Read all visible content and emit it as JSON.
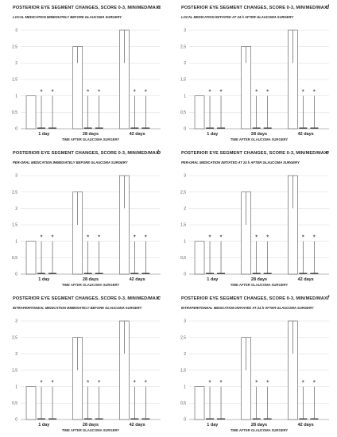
{
  "chart_data": [
    {
      "type": "bar",
      "panel": "a",
      "title": "POSTERIOR EYE SEGMENT CHANGES, SCORE 0-3, MIN/MED/MAX",
      "subtitle": "LOCAL MEDICATION IMMEDIATELY BEFORE GLAUCOMA SURGERY",
      "xlabel": "TIME AFTER GLAUCOMA SURGERY",
      "categories": [
        "1 day",
        "28 days",
        "42 days"
      ],
      "yticks": [
        "0",
        "0,5",
        "1",
        "1,5",
        "2",
        "2,5",
        "3"
      ],
      "ylim": [
        0,
        3
      ],
      "groups": [
        {
          "bars": [
            {
              "value": 1,
              "err_min": 1,
              "err_max": 1,
              "star": false
            },
            {
              "value": 0,
              "err_min": 0,
              "err_max": 1,
              "star": true
            },
            {
              "value": 0,
              "err_min": 0,
              "err_max": 1,
              "star": true
            }
          ]
        },
        {
          "bars": [
            {
              "value": 2.5,
              "err_min": 2,
              "err_max": 2.5,
              "star": false
            },
            {
              "value": 0,
              "err_min": 0,
              "err_max": 1,
              "star": true
            },
            {
              "value": 0,
              "err_min": 0,
              "err_max": 1,
              "star": true
            }
          ]
        },
        {
          "bars": [
            {
              "value": 3,
              "err_min": 2,
              "err_max": 3,
              "star": false
            },
            {
              "value": 0,
              "err_min": 0,
              "err_max": 1,
              "star": true
            },
            {
              "value": 0,
              "err_min": 0,
              "err_max": 1,
              "star": true
            }
          ]
        }
      ],
      "star_label": "*"
    },
    {
      "type": "bar",
      "panel": "d",
      "title": "POSTERIOR EYE SEGMENT CHANGES, SCORE 0-3, MIN/MED/MAX",
      "subtitle": "LOCAL MEDICATION INITIATED AT 24 h AFTER GLAUCOMA SURGERY",
      "xlabel": "TIME AFTER GLAUCOMA SURGERY",
      "categories": [
        "1 day",
        "28 days",
        "42 days"
      ],
      "yticks": [
        "0",
        "0,5",
        "1",
        "1,5",
        "2",
        "2,5",
        "3"
      ],
      "ylim": [
        0,
        3
      ],
      "groups": [
        {
          "bars": [
            {
              "value": 1,
              "err_min": 1,
              "err_max": 1,
              "star": false
            },
            {
              "value": 0,
              "err_min": 0,
              "err_max": 1,
              "star": true
            },
            {
              "value": 0,
              "err_min": 0,
              "err_max": 1,
              "star": true
            }
          ]
        },
        {
          "bars": [
            {
              "value": 2.5,
              "err_min": 2,
              "err_max": 2.5,
              "star": false
            },
            {
              "value": 0,
              "err_min": 0,
              "err_max": 1,
              "star": true
            },
            {
              "value": 0,
              "err_min": 0,
              "err_max": 1,
              "star": true
            }
          ]
        },
        {
          "bars": [
            {
              "value": 3,
              "err_min": 2,
              "err_max": 3,
              "star": false
            },
            {
              "value": 0,
              "err_min": 0,
              "err_max": 1,
              "star": true
            },
            {
              "value": 0,
              "err_min": 0,
              "err_max": 1,
              "star": true
            }
          ]
        }
      ],
      "star_label": "*"
    },
    {
      "type": "bar",
      "panel": "b",
      "title": "POSTERIOR EYE SEGMENT CHANGES, SCORE 0-3, MIN/MED/MAX",
      "subtitle": "PER-ORAL MEDICATION IMMEDIATELY BEFORE GLAUCOMA SURGERY",
      "xlabel": "TIME AFTER GLAUCOMA SURGERY",
      "categories": [
        "1 day",
        "28 days",
        "42 days"
      ],
      "yticks": [
        "0",
        "0,5",
        "1",
        "1,5",
        "2",
        "2,5",
        "3"
      ],
      "ylim": [
        0,
        3
      ],
      "groups": [
        {
          "bars": [
            {
              "value": 1,
              "err_min": 1,
              "err_max": 1,
              "star": false
            },
            {
              "value": 0,
              "err_min": 0,
              "err_max": 1,
              "star": true
            },
            {
              "value": 0,
              "err_min": 0,
              "err_max": 1,
              "star": true
            }
          ]
        },
        {
          "bars": [
            {
              "value": 2.5,
              "err_min": 1.5,
              "err_max": 2.5,
              "star": false
            },
            {
              "value": 0,
              "err_min": 0,
              "err_max": 1,
              "star": true
            },
            {
              "value": 0,
              "err_min": 0,
              "err_max": 1,
              "star": true
            }
          ]
        },
        {
          "bars": [
            {
              "value": 3,
              "err_min": 2,
              "err_max": 3,
              "star": false
            },
            {
              "value": 0,
              "err_min": 0,
              "err_max": 1,
              "star": true
            },
            {
              "value": 0,
              "err_min": 0,
              "err_max": 1,
              "star": true
            }
          ]
        }
      ],
      "star_label": "*"
    },
    {
      "type": "bar",
      "panel": "e",
      "title": "POSTERIOR EYE SEGMENT CHANGES, SCORE 0-3, MIN/MED/MAX",
      "subtitle": "PER-ORAL MEDICATION INITIATED AT 24 h AFTER GLAUCOMA SURGERY",
      "xlabel": "TIME AFTER GLAUCOMA SURGERY",
      "categories": [
        "1 day",
        "28 days",
        "42 days"
      ],
      "yticks": [
        "0",
        "0,5",
        "1",
        "1,5",
        "2",
        "2,5",
        "3"
      ],
      "ylim": [
        0,
        3
      ],
      "groups": [
        {
          "bars": [
            {
              "value": 1,
              "err_min": 1,
              "err_max": 1,
              "star": false
            },
            {
              "value": 0,
              "err_min": 0,
              "err_max": 1,
              "star": true
            },
            {
              "value": 0,
              "err_min": 0,
              "err_max": 1,
              "star": true
            }
          ]
        },
        {
          "bars": [
            {
              "value": 2.5,
              "err_min": 1.5,
              "err_max": 2.5,
              "star": false
            },
            {
              "value": 0,
              "err_min": 0,
              "err_max": 1,
              "star": true
            },
            {
              "value": 0,
              "err_min": 0,
              "err_max": 1,
              "star": true
            }
          ]
        },
        {
          "bars": [
            {
              "value": 3,
              "err_min": 2,
              "err_max": 3,
              "star": false
            },
            {
              "value": 0,
              "err_min": 0,
              "err_max": 1,
              "star": true
            },
            {
              "value": 0,
              "err_min": 0,
              "err_max": 1,
              "star": true
            }
          ]
        }
      ],
      "star_label": "*"
    },
    {
      "type": "bar",
      "panel": "c",
      "title": "POSTERIOR EYE SEGMENT CHANGES, SCORE 0-3, MIN/MED/MAX",
      "subtitle": "INTRAPERITONEAL MEDICATION IMMEDIATELY BEFORE GLAUCOMA SURGERY",
      "xlabel": "TIME AFTER GLAUCOMA SURGERY",
      "categories": [
        "1 day",
        "28 days",
        "42 days"
      ],
      "yticks": [
        "0",
        "0,5",
        "1",
        "1,5",
        "2",
        "2,5",
        "3"
      ],
      "ylim": [
        0,
        3
      ],
      "groups": [
        {
          "bars": [
            {
              "value": 1,
              "err_min": 1,
              "err_max": 1,
              "star": false
            },
            {
              "value": 0,
              "err_min": 0,
              "err_max": 1,
              "star": true
            },
            {
              "value": 0,
              "err_min": 0,
              "err_max": 1,
              "star": true
            }
          ]
        },
        {
          "bars": [
            {
              "value": 2.5,
              "err_min": 1.5,
              "err_max": 2.5,
              "star": false
            },
            {
              "value": 0,
              "err_min": 0,
              "err_max": 1,
              "star": true
            },
            {
              "value": 0,
              "err_min": 0,
              "err_max": 1,
              "star": true
            }
          ]
        },
        {
          "bars": [
            {
              "value": 3,
              "err_min": 2,
              "err_max": 3,
              "star": false
            },
            {
              "value": 0,
              "err_min": 0,
              "err_max": 1,
              "star": true
            },
            {
              "value": 0,
              "err_min": 0,
              "err_max": 1,
              "star": true
            }
          ]
        }
      ],
      "star_label": "*"
    },
    {
      "type": "bar",
      "panel": "f",
      "title": "POSTERIOR EYE SEGMENT CHANGES, SCORE 0-3, MIN/MED/MAX",
      "subtitle": "INTRAPERITONEAL MEDICATION INITIATED AT 24 h AFTER GLAUCOMA SURGERY",
      "xlabel": "TIME AFTER GLAUCOMA SURGERY",
      "categories": [
        "1 day",
        "28 days",
        "42 days"
      ],
      "yticks": [
        "0",
        "0,5",
        "1",
        "1,5",
        "2",
        "2,5",
        "3"
      ],
      "ylim": [
        0,
        3
      ],
      "groups": [
        {
          "bars": [
            {
              "value": 1,
              "err_min": 1,
              "err_max": 1,
              "star": false
            },
            {
              "value": 0,
              "err_min": 0,
              "err_max": 1,
              "star": true
            },
            {
              "value": 0,
              "err_min": 0,
              "err_max": 1,
              "star": true
            }
          ]
        },
        {
          "bars": [
            {
              "value": 2.5,
              "err_min": 1.5,
              "err_max": 2.5,
              "star": false
            },
            {
              "value": 0,
              "err_min": 0,
              "err_max": 1,
              "star": true
            },
            {
              "value": 0,
              "err_min": 0,
              "err_max": 1,
              "star": true
            }
          ]
        },
        {
          "bars": [
            {
              "value": 3,
              "err_min": 2,
              "err_max": 3,
              "star": false
            },
            {
              "value": 0,
              "err_min": 0,
              "err_max": 1,
              "star": true
            },
            {
              "value": 0,
              "err_min": 0,
              "err_max": 1,
              "star": true
            }
          ]
        }
      ],
      "star_label": "*"
    }
  ]
}
